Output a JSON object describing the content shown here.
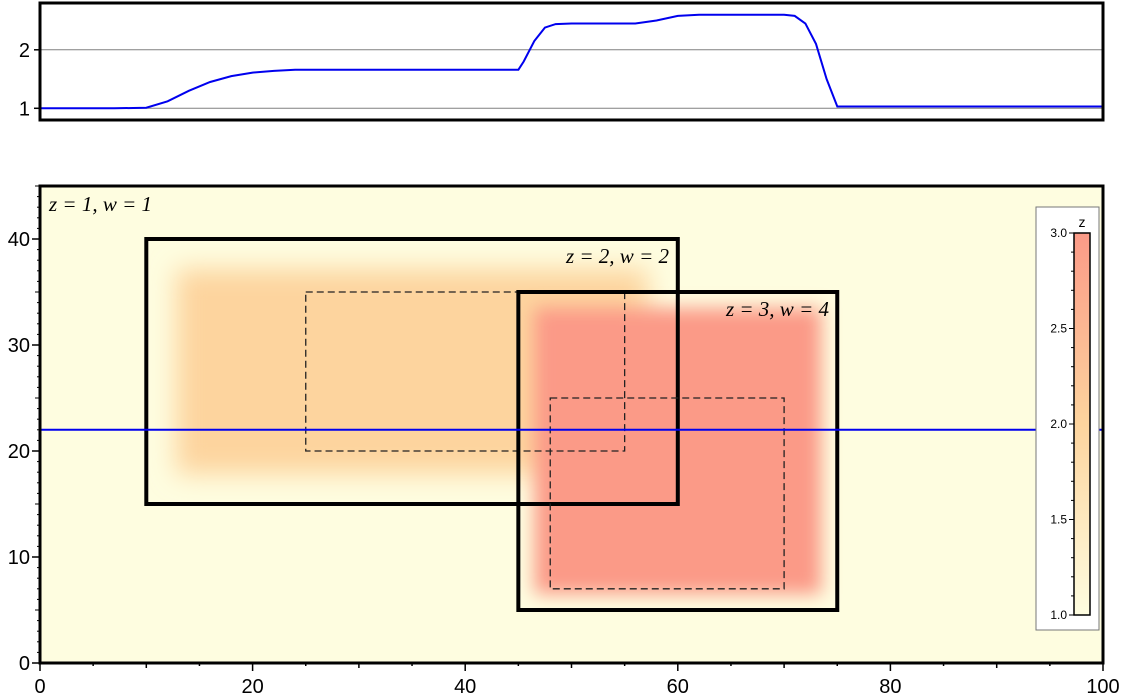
{
  "colors": {
    "profile_line": "#0000ee",
    "map_low": "#fefde0",
    "map_mid": "#fdd49e",
    "map_high": "#fb9a87",
    "frame": "#000000"
  },
  "chart_data": [
    {
      "type": "line",
      "panel": "profile",
      "xlim": [
        0,
        100
      ],
      "ylim": [
        0.8,
        2.8
      ],
      "yticks": [
        "1",
        "2"
      ],
      "ytick_values": [
        1,
        2
      ],
      "grid": "horizontal lines at ticks",
      "series": [
        {
          "x": [
            0,
            7,
            10,
            12,
            14,
            16,
            18,
            20,
            22,
            24,
            25,
            45,
            45.5,
            46.5,
            47.5,
            48.5,
            50,
            52,
            56,
            58,
            60,
            62,
            64,
            66,
            68,
            70,
            71,
            72,
            73,
            74,
            75,
            100
          ],
          "y": [
            1,
            1,
            1.01,
            1.12,
            1.3,
            1.45,
            1.55,
            1.61,
            1.64,
            1.66,
            1.66,
            1.66,
            1.8,
            2.15,
            2.38,
            2.44,
            2.45,
            2.45,
            2.45,
            2.5,
            2.58,
            2.6,
            2.6,
            2.6,
            2.6,
            2.6,
            2.58,
            2.45,
            2.1,
            1.5,
            1.03,
            1.03
          ]
        }
      ]
    },
    {
      "type": "heatmap",
      "panel": "map",
      "xlim": [
        0,
        100
      ],
      "ylim": [
        0,
        45
      ],
      "xticks": [
        "0",
        "20",
        "40",
        "60",
        "80",
        "100"
      ],
      "xtick_values": [
        0,
        20,
        40,
        60,
        80,
        100
      ],
      "yticks": [
        "0",
        "10",
        "20",
        "30",
        "40"
      ],
      "ytick_values": [
        0,
        10,
        20,
        30,
        40
      ],
      "regions": [
        {
          "label": "z = 1, w = 1",
          "z": 1,
          "w": 1
        },
        {
          "label": "z = 2, w = 2",
          "z": 2,
          "w": 2,
          "x": [
            10,
            60
          ],
          "y": [
            15,
            40
          ],
          "inner_x": [
            25,
            55
          ],
          "inner_y": [
            20,
            35
          ]
        },
        {
          "label": "z = 3, w = 4",
          "z": 3,
          "w": 4,
          "x": [
            45,
            75
          ],
          "y": [
            5,
            35
          ],
          "inner_x": [
            48,
            70
          ],
          "inner_y": [
            7,
            25
          ]
        }
      ],
      "profile_line_y": 22,
      "colorbar": {
        "title": "z",
        "range": [
          1.0,
          3.0
        ],
        "ticks": [
          "1.0",
          "1.5",
          "2.0",
          "2.5",
          "3.0"
        ],
        "tick_values": [
          1.0,
          1.5,
          2.0,
          2.5,
          3.0
        ]
      }
    }
  ]
}
